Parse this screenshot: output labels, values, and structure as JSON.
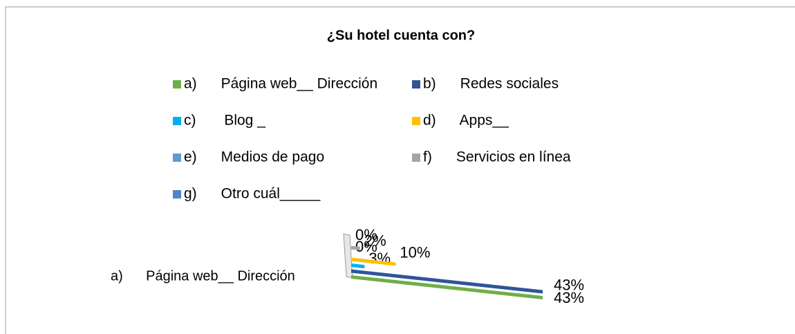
{
  "chart_data": {
    "type": "bar",
    "title": "¿Su hotel cuenta con?",
    "categories": [
      "a)      Página web__ Dirección"
    ],
    "series": [
      {
        "name": "a)      Página web__ Dirección",
        "color": "#70ad47",
        "values": [
          43
        ],
        "value_labels": [
          "43%"
        ]
      },
      {
        "name": "b)      Redes sociales",
        "color": "#2f5597",
        "values": [
          43
        ],
        "value_labels": [
          "43%"
        ]
      },
      {
        "name": "c)       Blog _",
        "color": "#00b0f0",
        "values": [
          3
        ],
        "value_labels": [
          "3%"
        ]
      },
      {
        "name": "d)      Apps__",
        "color": "#ffc000",
        "values": [
          10
        ],
        "value_labels": [
          "10%"
        ]
      },
      {
        "name": "e)      Medios de pago",
        "color": "#5b9bd5",
        "values": [
          0
        ],
        "value_labels": [
          "0%"
        ]
      },
      {
        "name": "f)      Servicios en línea",
        "color": "#a5a5a5",
        "values": [
          2
        ],
        "value_labels": [
          "2%"
        ]
      },
      {
        "name": "g)      Otro cuál_____",
        "color": "#4a86c8",
        "values": [
          0
        ],
        "value_labels": [
          "0%"
        ]
      }
    ]
  }
}
